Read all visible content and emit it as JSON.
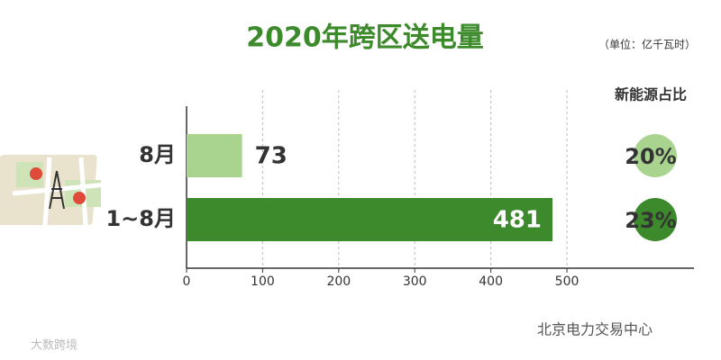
{
  "chart_data": {
    "type": "bar",
    "orientation": "horizontal",
    "title": "2020年跨区送电量",
    "subtitle": "（单位：亿千瓦时）",
    "categories": [
      "8月",
      "1~8月"
    ],
    "values": [
      73,
      481
    ],
    "colors": [
      "#a9d490",
      "#3c8a2c"
    ],
    "xlim": [
      0,
      667
    ],
    "xticks": [
      0,
      100,
      200,
      300,
      400,
      500
    ],
    "grid": true,
    "share": {
      "title": "新能源占比",
      "values": [
        20,
        23
      ],
      "value_labels": [
        "20%",
        "23%"
      ],
      "colors": [
        "#a9d490",
        "#3c8a2c"
      ]
    },
    "annotations": [
      "北京电力交易中心",
      "大数跨境"
    ]
  }
}
